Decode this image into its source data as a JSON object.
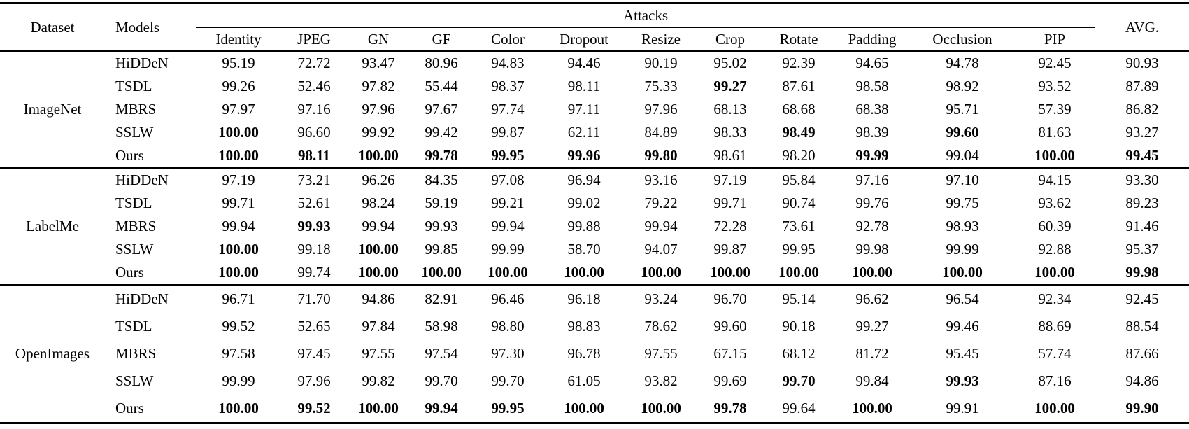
{
  "table": {
    "headers": {
      "dataset": "Dataset",
      "models": "Models",
      "attacks_group": "Attacks",
      "avg": "AVG.",
      "attacks": [
        "Identity",
        "JPEG",
        "GN",
        "GF",
        "Color",
        "Dropout",
        "Resize",
        "Crop",
        "Rotate",
        "Padding",
        "Occlusion",
        "PIP"
      ]
    },
    "groups": [
      {
        "dataset": "ImageNet",
        "rows": [
          {
            "model": "HiDDeN",
            "values": [
              "95.19",
              "72.72",
              "93.47",
              "80.96",
              "94.83",
              "94.46",
              "90.19",
              "95.02",
              "92.39",
              "94.65",
              "94.78",
              "92.45",
              "90.93"
            ],
            "bold": []
          },
          {
            "model": "TSDL",
            "values": [
              "99.26",
              "52.46",
              "97.82",
              "55.44",
              "98.37",
              "98.11",
              "75.33",
              "99.27",
              "87.61",
              "98.58",
              "98.92",
              "93.52",
              "87.89"
            ],
            "bold": [
              7
            ]
          },
          {
            "model": "MBRS",
            "values": [
              "97.97",
              "97.16",
              "97.96",
              "97.67",
              "97.74",
              "97.11",
              "97.96",
              "68.13",
              "68.68",
              "68.38",
              "95.71",
              "57.39",
              "86.82"
            ],
            "bold": []
          },
          {
            "model": "SSLW",
            "values": [
              "100.00",
              "96.60",
              "99.92",
              "99.42",
              "99.87",
              "62.11",
              "84.89",
              "98.33",
              "98.49",
              "98.39",
              "99.60",
              "81.63",
              "93.27"
            ],
            "bold": [
              0,
              8,
              10
            ]
          },
          {
            "model": "Ours",
            "values": [
              "100.00",
              "98.11",
              "100.00",
              "99.78",
              "99.95",
              "99.96",
              "99.80",
              "98.61",
              "98.20",
              "99.99",
              "99.04",
              "100.00",
              "99.45"
            ],
            "bold": [
              0,
              1,
              2,
              3,
              4,
              5,
              6,
              9,
              11,
              12
            ]
          }
        ]
      },
      {
        "dataset": "LabelMe",
        "rows": [
          {
            "model": "HiDDeN",
            "values": [
              "97.19",
              "73.21",
              "96.26",
              "84.35",
              "97.08",
              "96.94",
              "93.16",
              "97.19",
              "95.84",
              "97.16",
              "97.10",
              "94.15",
              "93.30"
            ],
            "bold": []
          },
          {
            "model": "TSDL",
            "values": [
              "99.71",
              "52.61",
              "98.24",
              "59.19",
              "99.21",
              "99.02",
              "79.22",
              "99.71",
              "90.74",
              "99.76",
              "99.75",
              "93.62",
              "89.23"
            ],
            "bold": []
          },
          {
            "model": "MBRS",
            "values": [
              "99.94",
              "99.93",
              "99.94",
              "99.93",
              "99.94",
              "99.88",
              "99.94",
              "72.28",
              "73.61",
              "92.78",
              "98.93",
              "60.39",
              "91.46"
            ],
            "bold": [
              1
            ]
          },
          {
            "model": "SSLW",
            "values": [
              "100.00",
              "99.18",
              "100.00",
              "99.85",
              "99.99",
              "58.70",
              "94.07",
              "99.87",
              "99.95",
              "99.98",
              "99.99",
              "92.88",
              "95.37"
            ],
            "bold": [
              0,
              2
            ]
          },
          {
            "model": "Ours",
            "values": [
              "100.00",
              "99.74",
              "100.00",
              "100.00",
              "100.00",
              "100.00",
              "100.00",
              "100.00",
              "100.00",
              "100.00",
              "100.00",
              "100.00",
              "99.98"
            ],
            "bold": [
              0,
              2,
              3,
              4,
              5,
              6,
              7,
              8,
              9,
              10,
              11,
              12
            ]
          }
        ]
      },
      {
        "dataset": "OpenImages",
        "rows": [
          {
            "model": "HiDDeN",
            "values": [
              "96.71",
              "71.70",
              "94.86",
              "82.91",
              "96.46",
              "96.18",
              "93.24",
              "96.70",
              "95.14",
              "96.62",
              "96.54",
              "92.34",
              "92.45"
            ],
            "bold": []
          },
          {
            "model": "TSDL",
            "values": [
              "99.52",
              "52.65",
              "97.84",
              "58.98",
              "98.80",
              "98.83",
              "78.62",
              "99.60",
              "90.18",
              "99.27",
              "99.46",
              "88.69",
              "88.54"
            ],
            "bold": []
          },
          {
            "model": "MBRS",
            "values": [
              "97.58",
              "97.45",
              "97.55",
              "97.54",
              "97.30",
              "96.78",
              "97.55",
              "67.15",
              "68.12",
              "81.72",
              "95.45",
              "57.74",
              "87.66"
            ],
            "bold": []
          },
          {
            "model": "SSLW",
            "values": [
              "99.99",
              "97.96",
              "99.82",
              "99.70",
              "99.70",
              "61.05",
              "93.82",
              "99.69",
              "99.70",
              "99.84",
              "99.93",
              "87.16",
              "94.86"
            ],
            "bold": [
              8,
              10
            ]
          },
          {
            "model": "Ours",
            "values": [
              "100.00",
              "99.52",
              "100.00",
              "99.94",
              "99.95",
              "100.00",
              "100.00",
              "99.78",
              "99.64",
              "100.00",
              "99.91",
              "100.00",
              "99.90"
            ],
            "bold": [
              0,
              1,
              2,
              3,
              4,
              5,
              6,
              7,
              9,
              11,
              12
            ]
          }
        ]
      }
    ]
  }
}
